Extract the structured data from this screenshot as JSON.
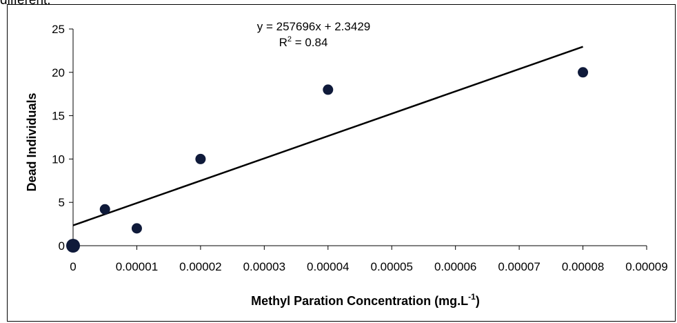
{
  "page": {
    "top_fragment": "different."
  },
  "chart_data": {
    "type": "scatter",
    "title": "",
    "xlabel": "Methyl Paration Concentration (mg.L",
    "xlabel_sup": "-1",
    "xlabel_close": ")",
    "ylabel": "Dead Individuals",
    "xlim": [
      0,
      9e-05
    ],
    "ylim": [
      0,
      25
    ],
    "x_ticks": [
      0,
      1e-05,
      2e-05,
      3e-05,
      4e-05,
      5e-05,
      6e-05,
      7e-05,
      8e-05,
      9e-05
    ],
    "x_tick_labels": [
      "0",
      "0.00001",
      "0.00002",
      "0.00003",
      "0.00004",
      "0.00005",
      "0.00006",
      "0.00007",
      "0.00008",
      "0.00009"
    ],
    "y_ticks": [
      0,
      5,
      10,
      15,
      20,
      25
    ],
    "y_tick_labels": [
      "0",
      "5",
      "10",
      "15",
      "20",
      "25"
    ],
    "grid": false,
    "legend": "none",
    "series": [
      {
        "x": [
          0,
          5e-06,
          1e-05,
          2e-05,
          4e-05,
          8e-05
        ],
        "y": [
          0,
          4.2,
          2,
          10,
          18,
          20
        ],
        "color": "#0f1a3a"
      }
    ],
    "trendline": {
      "slope": 257696,
      "intercept": 2.3429,
      "x_range": [
        0,
        8e-05
      ],
      "color": "#000000",
      "equation_text": "y = 257696x + 2.3429",
      "r2_label": "R",
      "r2_sup": "2",
      "r2_value": " = 0.84"
    }
  }
}
